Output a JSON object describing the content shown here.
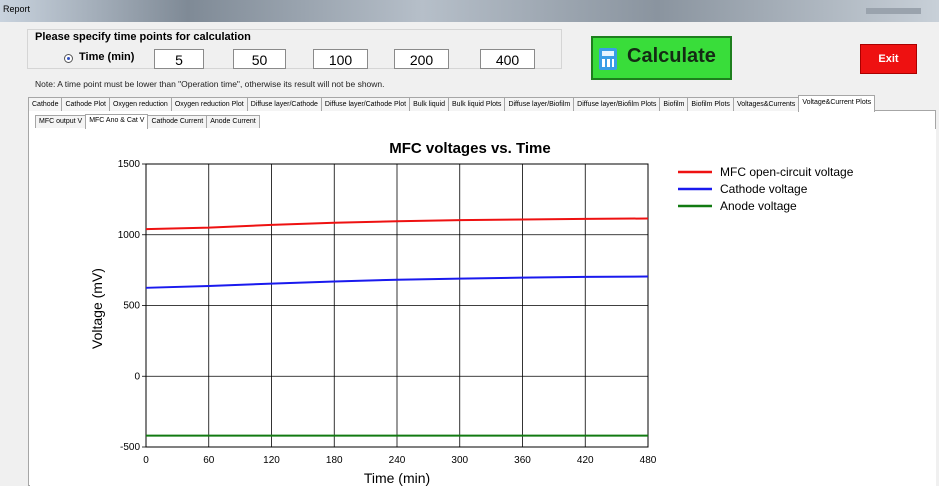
{
  "window": {
    "title": "Report"
  },
  "time_panel": {
    "heading": "Please specify time points for calculation",
    "radio_label": "Time (min)",
    "values": [
      "5",
      "50",
      "100",
      "200",
      "400"
    ],
    "note": "Note: A time point must be lower than \"Operation time\", otherwise its result will not be shown."
  },
  "buttons": {
    "calculate": "Calculate",
    "exit": "Exit"
  },
  "tabs": [
    "Cathode",
    "Cathode Plot",
    "Oxygen reduction",
    "Oxygen reduction Plot",
    "Diffuse layer/Cathode",
    "Diffuse layer/Cathode Plot",
    "Bulk liquid",
    "Bulk liquid Plots",
    "Diffuse layer/Biofilm",
    "Diffuse layer/Biofilm Plots",
    "Biofilm",
    "Biofilm Plots",
    "Voltages&Currents",
    "Voltage&Current Plots"
  ],
  "active_tab": "Voltage&Current Plots",
  "subtabs": [
    "MFC output V",
    "MFC Ano & Cat V",
    "Cathode Current",
    "Anode Current"
  ],
  "active_subtab": "MFC Ano & Cat V",
  "colors": {
    "calculate_bg": "#39dd3a",
    "exit_bg": "#ee1111",
    "series_ocv": "#ee1111",
    "series_cathode": "#1a1aee",
    "series_anode": "#127a12"
  },
  "chart_data": {
    "type": "line",
    "title": "MFC voltages vs. Time",
    "xlabel": "Time (min)",
    "ylabel": "Voltage (mV)",
    "xlim": [
      0,
      480
    ],
    "ylim": [
      -500,
      1500
    ],
    "xticks": [
      0,
      60,
      120,
      180,
      240,
      300,
      360,
      420,
      480
    ],
    "yticks": [
      -500,
      0,
      500,
      1000,
      1500
    ],
    "grid": true,
    "legend_position": "right",
    "x": [
      0,
      60,
      120,
      180,
      240,
      300,
      360,
      420,
      480
    ],
    "series": [
      {
        "name": "MFC open-circuit voltage",
        "color": "#ee1111",
        "values": [
          1040,
          1050,
          1070,
          1085,
          1095,
          1103,
          1108,
          1112,
          1115
        ]
      },
      {
        "name": "Cathode voltage",
        "color": "#1a1aee",
        "values": [
          625,
          638,
          655,
          670,
          682,
          690,
          697,
          702,
          705
        ]
      },
      {
        "name": "Anode voltage",
        "color": "#127a12",
        "values": [
          -420,
          -420,
          -420,
          -420,
          -420,
          -420,
          -420,
          -420,
          -420
        ]
      }
    ]
  }
}
